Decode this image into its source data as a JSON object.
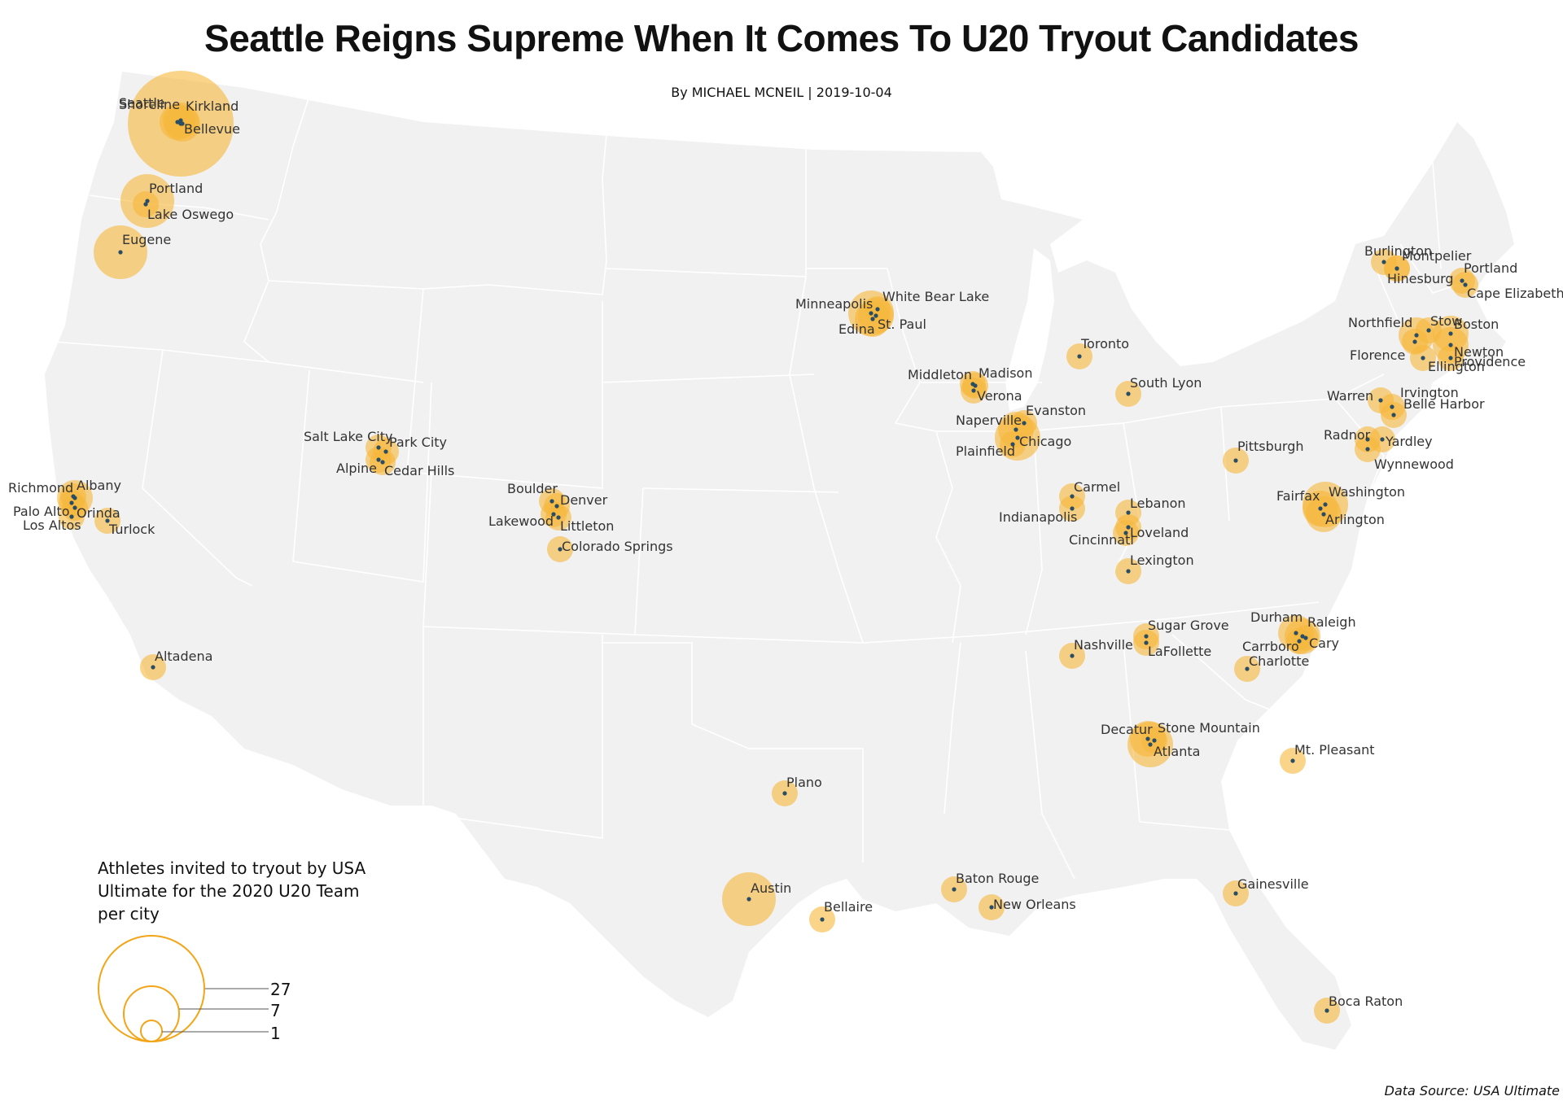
{
  "title": "Seattle Reigns Supreme When It Comes To U20 Tryout Candidates",
  "byline": "By MICHAEL MCNEIL | 2019-10-04",
  "source": "Data Source: USA Ultimate",
  "legend": {
    "title": "Athletes invited to tryout by USA Ultimate for the 2020 U20 Team per city",
    "values": [
      "27",
      "7",
      "1"
    ]
  },
  "colors": {
    "land": "#f1f1f1",
    "border": "#ffffff",
    "bubble": "#f6b83b",
    "dot": "#2a4d63",
    "legend_stroke": "#f2a516"
  },
  "cities": [
    {
      "name": "Seattle",
      "n": 27
    },
    {
      "name": "Shoreline",
      "n": 2
    },
    {
      "name": "Kirkland",
      "n": 2
    },
    {
      "name": "Bellevue",
      "n": 2
    },
    {
      "name": "Portland",
      "n": 7
    },
    {
      "name": "Lake Oswego",
      "n": 1
    },
    {
      "name": "Eugene",
      "n": 7
    },
    {
      "name": "Richmond",
      "n": 1
    },
    {
      "name": "Albany",
      "n": 2
    },
    {
      "name": "Palo Alto",
      "n": 1
    },
    {
      "name": "Orinda",
      "n": 1
    },
    {
      "name": "Los Altos",
      "n": 1
    },
    {
      "name": "Turlock",
      "n": 1
    },
    {
      "name": "Altadena",
      "n": 1
    },
    {
      "name": "Salt Lake City",
      "n": 1
    },
    {
      "name": "Park City",
      "n": 1
    },
    {
      "name": "Alpine",
      "n": 1
    },
    {
      "name": "Cedar Hills",
      "n": 1
    },
    {
      "name": "Boulder",
      "n": 1
    },
    {
      "name": "Denver",
      "n": 1
    },
    {
      "name": "Lakewood",
      "n": 1
    },
    {
      "name": "Littleton",
      "n": 1
    },
    {
      "name": "Colorado Springs",
      "n": 1
    },
    {
      "name": "Minneapolis",
      "n": 3
    },
    {
      "name": "White Bear Lake",
      "n": 1
    },
    {
      "name": "Edina",
      "n": 2
    },
    {
      "name": "St. Paul",
      "n": 2
    },
    {
      "name": "Middleton",
      "n": 1
    },
    {
      "name": "Madison",
      "n": 1
    },
    {
      "name": "Verona",
      "n": 1
    },
    {
      "name": "Naperville",
      "n": 2
    },
    {
      "name": "Evanston",
      "n": 1
    },
    {
      "name": "Chicago",
      "n": 3
    },
    {
      "name": "Plainfield",
      "n": 1
    },
    {
      "name": "Toronto",
      "n": 1
    },
    {
      "name": "South Lyon",
      "n": 1
    },
    {
      "name": "Carmel",
      "n": 1
    },
    {
      "name": "Indianapolis",
      "n": 1
    },
    {
      "name": "Lebanon",
      "n": 1
    },
    {
      "name": "Loveland",
      "n": 1
    },
    {
      "name": "Cincinnati",
      "n": 1
    },
    {
      "name": "Lexington",
      "n": 1
    },
    {
      "name": "Pittsburgh",
      "n": 1
    },
    {
      "name": "Nashville",
      "n": 1
    },
    {
      "name": "Sugar Grove",
      "n": 1
    },
    {
      "name": "LaFollette",
      "n": 1
    },
    {
      "name": "Durham",
      "n": 2
    },
    {
      "name": "Raleigh",
      "n": 2
    },
    {
      "name": "Carrboro",
      "n": 1
    },
    {
      "name": "Cary",
      "n": 1
    },
    {
      "name": "Charlotte",
      "n": 1
    },
    {
      "name": "Decatur",
      "n": 2
    },
    {
      "name": "Stone Mountain",
      "n": 1
    },
    {
      "name": "Atlanta",
      "n": 3
    },
    {
      "name": "Mt. Pleasant",
      "n": 1
    },
    {
      "name": "Plano",
      "n": 1
    },
    {
      "name": "Austin",
      "n": 7
    },
    {
      "name": "Bellaire",
      "n": 1
    },
    {
      "name": "Baton Rouge",
      "n": 1
    },
    {
      "name": "New Orleans",
      "n": 1
    },
    {
      "name": "Gainesville",
      "n": 1
    },
    {
      "name": "Boca Raton",
      "n": 1
    },
    {
      "name": "Fairfax",
      "n": 2
    },
    {
      "name": "Washington",
      "n": 3
    },
    {
      "name": "Arlington",
      "n": 2
    },
    {
      "name": "Radnor",
      "n": 1
    },
    {
      "name": "Yardley",
      "n": 1
    },
    {
      "name": "Wynnewood",
      "n": 1
    },
    {
      "name": "Warren",
      "n": 1
    },
    {
      "name": "Belle Harbor",
      "n": 1
    },
    {
      "name": "Irvington",
      "n": 1
    },
    {
      "name": "Burlington",
      "n": 1
    },
    {
      "name": "Montpelier",
      "n": 1
    },
    {
      "name": "Hinesburg",
      "n": 1
    },
    {
      "name": "Portland",
      "n": 1
    },
    {
      "name": "Cape Elizabeth",
      "n": 1
    },
    {
      "name": "Northfield",
      "n": 2
    },
    {
      "name": "Stow",
      "n": 1
    },
    {
      "name": "Boston",
      "n": 2
    },
    {
      "name": "Florence",
      "n": 1
    },
    {
      "name": "Newton",
      "n": 2
    },
    {
      "name": "Providence",
      "n": 1
    },
    {
      "name": "Ellington",
      "n": 1
    }
  ]
}
